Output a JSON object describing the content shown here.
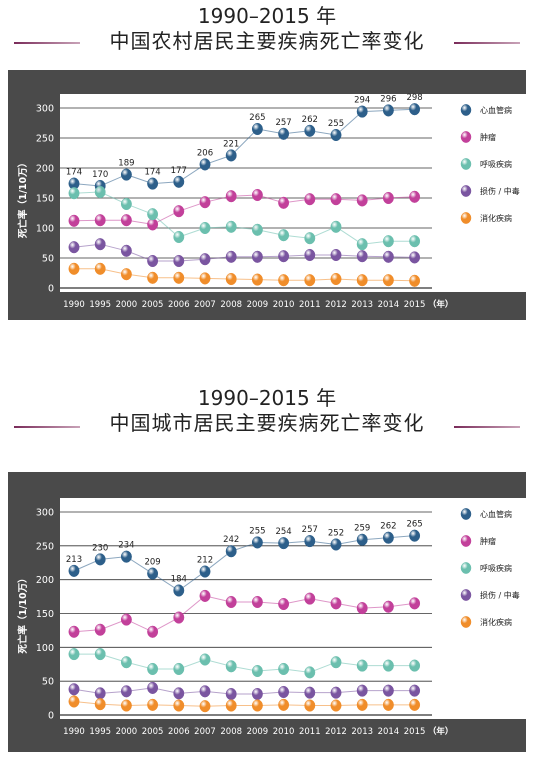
{
  "charts": [
    {
      "title_year": "1990–2015 年",
      "title_main": "中国农村居民主要疾病死亡率变化"
    },
    {
      "title_year": "1990–2015 年",
      "title_main": "中国城市居民主要疾病死亡率变化"
    }
  ],
  "chart_data": [
    {
      "type": "line",
      "title": "1990–2015 年 中国农村居民主要疾病死亡率变化",
      "ylabel": "死亡率（1/10万）",
      "xunit": "（年）",
      "ylim": [
        0,
        300
      ],
      "yticks": [
        0,
        50,
        100,
        150,
        200,
        250,
        300
      ],
      "grid": true,
      "legend_position": "right",
      "categories": [
        "1990",
        "1995",
        "2000",
        "2005",
        "2006",
        "2007",
        "2008",
        "2009",
        "2010",
        "2011",
        "2012",
        "2013",
        "2014",
        "2015"
      ],
      "series": [
        {
          "name": "心血管病",
          "color": "#2d5f8a",
          "labeled": true,
          "values": [
            174,
            170,
            189,
            174,
            177,
            206,
            221,
            265,
            257,
            262,
            255,
            294,
            296,
            298
          ]
        },
        {
          "name": "肿瘤",
          "color": "#c2409a",
          "labeled": false,
          "values": [
            112,
            113,
            113,
            106,
            128,
            143,
            153,
            155,
            142,
            148,
            148,
            146,
            150,
            152
          ]
        },
        {
          "name": "呼吸疾病",
          "color": "#6bbfae",
          "labeled": false,
          "values": [
            158,
            160,
            140,
            123,
            85,
            100,
            102,
            97,
            88,
            83,
            102,
            73,
            78,
            78
          ]
        },
        {
          "name": "损伤 / 中毒",
          "color": "#7a55a0",
          "labeled": false,
          "values": [
            68,
            73,
            62,
            45,
            45,
            48,
            52,
            52,
            53,
            55,
            55,
            53,
            52,
            51
          ]
        },
        {
          "name": "消化疾病",
          "color": "#f08d2a",
          "labeled": false,
          "values": [
            32,
            32,
            23,
            17,
            17,
            16,
            15,
            14,
            13,
            13,
            15,
            13,
            13,
            12
          ]
        }
      ]
    },
    {
      "type": "line",
      "title": "1990–2015 年 中国城市居民主要疾病死亡率变化",
      "ylabel": "死亡率（1/10万）",
      "xunit": "（年）",
      "ylim": [
        0,
        300
      ],
      "yticks": [
        0,
        50,
        100,
        150,
        200,
        250,
        300
      ],
      "grid": true,
      "legend_position": "right",
      "categories": [
        "1990",
        "1995",
        "2000",
        "2005",
        "2006",
        "2007",
        "2008",
        "2009",
        "2010",
        "2011",
        "2012",
        "2013",
        "2014",
        "2015"
      ],
      "series": [
        {
          "name": "心血管病",
          "color": "#2d5f8a",
          "labeled": true,
          "values": [
            213,
            230,
            234,
            209,
            184,
            212,
            242,
            255,
            254,
            257,
            252,
            259,
            262,
            265
          ]
        },
        {
          "name": "肿瘤",
          "color": "#c2409a",
          "labeled": false,
          "values": [
            123,
            126,
            141,
            123,
            144,
            176,
            167,
            167,
            164,
            172,
            165,
            158,
            160,
            165
          ]
        },
        {
          "name": "呼吸疾病",
          "color": "#6bbfae",
          "labeled": false,
          "values": [
            90,
            90,
            78,
            68,
            68,
            82,
            72,
            65,
            68,
            63,
            78,
            73,
            73,
            73
          ]
        },
        {
          "name": "损伤 / 中毒",
          "color": "#7a55a0",
          "labeled": false,
          "values": [
            38,
            32,
            35,
            40,
            32,
            35,
            31,
            31,
            34,
            33,
            33,
            36,
            36,
            36
          ]
        },
        {
          "name": "消化疾病",
          "color": "#f08d2a",
          "labeled": false,
          "values": [
            20,
            16,
            14,
            15,
            14,
            13,
            14,
            14,
            15,
            14,
            14,
            15,
            15,
            15
          ]
        }
      ]
    }
  ]
}
